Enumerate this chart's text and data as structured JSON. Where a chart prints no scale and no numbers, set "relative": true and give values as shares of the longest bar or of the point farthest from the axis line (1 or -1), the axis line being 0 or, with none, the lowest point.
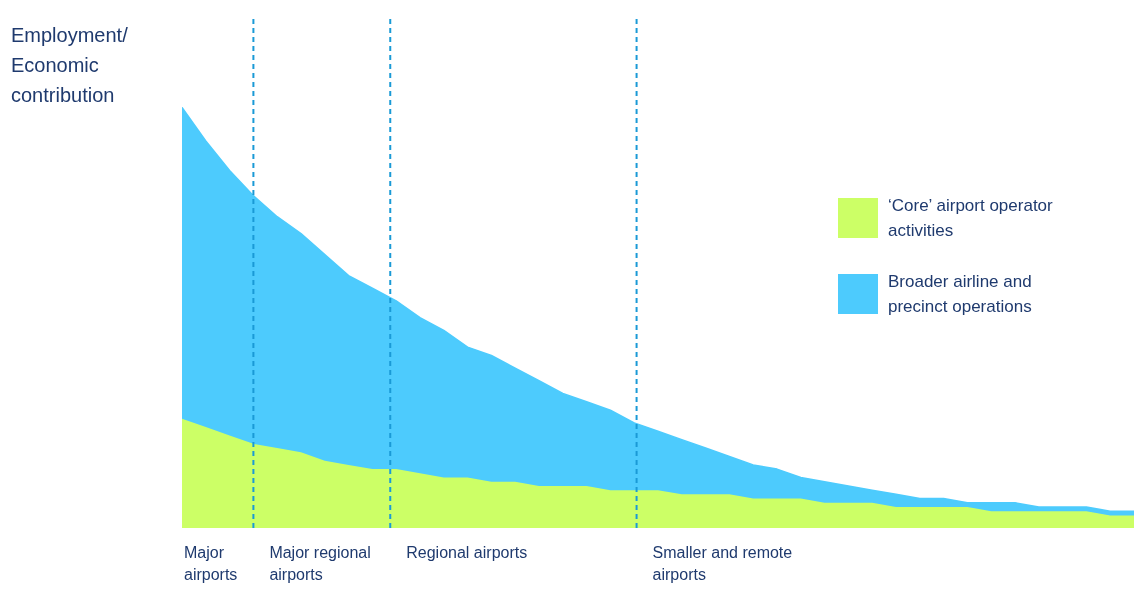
{
  "chart_data": {
    "type": "area",
    "ylabel": "Employment/ Economic contribution",
    "relative": true,
    "stacked": true,
    "legend": "right",
    "categories": [
      null,
      null,
      null,
      null,
      null,
      null,
      null,
      null,
      null,
      null,
      null,
      null,
      null,
      null,
      null,
      null,
      null,
      null,
      null,
      null,
      null,
      null,
      null,
      null,
      null,
      null,
      null,
      null,
      null,
      null,
      null,
      null,
      null,
      null,
      null,
      null,
      null,
      null,
      null,
      null,
      null
    ],
    "series": [
      {
        "name": "‘Core’ airport operator activities",
        "color": "#ccff66",
        "values": [
          0.26,
          0.24,
          0.22,
          0.2,
          0.19,
          0.18,
          0.16,
          0.15,
          0.14,
          0.14,
          0.13,
          0.12,
          0.12,
          0.11,
          0.11,
          0.1,
          0.1,
          0.1,
          0.09,
          0.09,
          0.09,
          0.08,
          0.08,
          0.08,
          0.07,
          0.07,
          0.07,
          0.06,
          0.06,
          0.06,
          0.05,
          0.05,
          0.05,
          0.05,
          0.04,
          0.04,
          0.04,
          0.04,
          0.04,
          0.03,
          0.03
        ]
      },
      {
        "name": "Broader airline and precinct operations",
        "color": "#4dcbfd",
        "values": [
          0.74,
          0.68,
          0.63,
          0.59,
          0.55,
          0.52,
          0.49,
          0.45,
          0.43,
          0.4,
          0.37,
          0.35,
          0.31,
          0.3,
          0.27,
          0.25,
          0.22,
          0.2,
          0.19,
          0.16,
          0.14,
          0.13,
          0.11,
          0.09,
          0.08,
          0.07,
          0.05,
          0.05,
          0.04,
          0.03,
          0.03,
          0.02,
          0.02,
          0.01,
          0.02,
          0.02,
          0.01,
          0.01,
          0.01,
          0.01,
          0.01
        ]
      }
    ],
    "annotations": [
      "Major airports",
      "Major regional airports",
      "Regional airports",
      "Smaller and remote airports"
    ]
  }
}
